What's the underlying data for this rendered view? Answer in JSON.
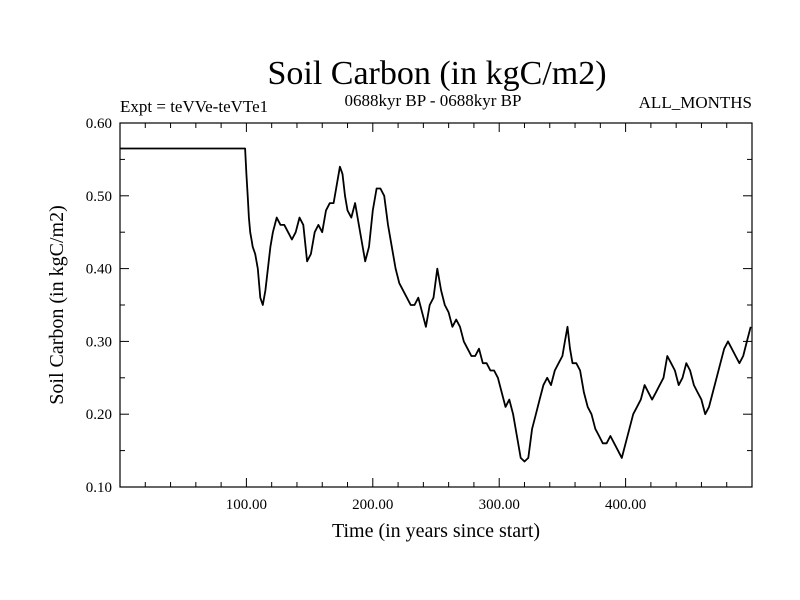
{
  "chart_data": {
    "type": "line",
    "title": "Soil Carbon (in kgC/m2)",
    "subtitle_left": "Expt = teVVe-teVTe1",
    "subtitle_center": "0688kyr BP - 0688kyr BP",
    "subtitle_right": "ALL_MONTHS",
    "xlabel": "Time (in years since start)",
    "ylabel": "Soil Carbon (in kgC/m2)",
    "xlim": [
      0,
      500
    ],
    "ylim": [
      0.1,
      0.6
    ],
    "xticks": [
      100,
      200,
      300,
      400
    ],
    "xtick_labels": [
      "100.00",
      "200.00",
      "300.00",
      "400.00"
    ],
    "yticks": [
      0.1,
      0.2,
      0.3,
      0.4,
      0.5,
      0.6
    ],
    "ytick_labels": [
      "0.10",
      "0.20",
      "0.30",
      "0.40",
      "0.50",
      "0.60"
    ],
    "grid": false,
    "line_color": "#000000",
    "series": [
      {
        "x": [
          0,
          99,
          100,
          101,
          102,
          103,
          104,
          105,
          107,
          109,
          111,
          113,
          115,
          117,
          119,
          121,
          124,
          127,
          130,
          133,
          136,
          139,
          142,
          145,
          148,
          151,
          154,
          157,
          160,
          163,
          166,
          169,
          172,
          174,
          176,
          178,
          180,
          183,
          186,
          188,
          191,
          194,
          197,
          200,
          203,
          206,
          209,
          212,
          215,
          218,
          221,
          224,
          227,
          230,
          233,
          236,
          239,
          242,
          245,
          248,
          251,
          254,
          257,
          260,
          263,
          266,
          269,
          272,
          275,
          278,
          281,
          284,
          287,
          290,
          293,
          296,
          299,
          302,
          305,
          308,
          311,
          314,
          317,
          320,
          323,
          326,
          329,
          332,
          335,
          338,
          341,
          344,
          347,
          350,
          352,
          354,
          356,
          358,
          361,
          364,
          367,
          370,
          373,
          376,
          379,
          382,
          385,
          388,
          391,
          394,
          397,
          400,
          403,
          406,
          409,
          412,
          415,
          418,
          421,
          424,
          427,
          430,
          433,
          436,
          439,
          442,
          445,
          448,
          451,
          454,
          457,
          460,
          463,
          466,
          469,
          472,
          475,
          478,
          481,
          484,
          487,
          490,
          493,
          496,
          499
        ],
        "y": [
          0.565,
          0.565,
          0.53,
          0.5,
          0.47,
          0.45,
          0.44,
          0.43,
          0.42,
          0.4,
          0.36,
          0.35,
          0.37,
          0.4,
          0.43,
          0.45,
          0.47,
          0.46,
          0.46,
          0.45,
          0.44,
          0.45,
          0.47,
          0.46,
          0.41,
          0.42,
          0.45,
          0.46,
          0.45,
          0.48,
          0.49,
          0.49,
          0.52,
          0.54,
          0.53,
          0.5,
          0.48,
          0.47,
          0.49,
          0.47,
          0.44,
          0.41,
          0.43,
          0.48,
          0.51,
          0.51,
          0.5,
          0.46,
          0.43,
          0.4,
          0.38,
          0.37,
          0.36,
          0.35,
          0.35,
          0.36,
          0.34,
          0.32,
          0.35,
          0.36,
          0.4,
          0.37,
          0.35,
          0.34,
          0.32,
          0.33,
          0.32,
          0.3,
          0.29,
          0.28,
          0.28,
          0.29,
          0.27,
          0.27,
          0.26,
          0.26,
          0.25,
          0.23,
          0.21,
          0.22,
          0.2,
          0.17,
          0.14,
          0.135,
          0.14,
          0.18,
          0.2,
          0.22,
          0.24,
          0.25,
          0.24,
          0.26,
          0.27,
          0.28,
          0.3,
          0.32,
          0.29,
          0.27,
          0.27,
          0.26,
          0.23,
          0.21,
          0.2,
          0.18,
          0.17,
          0.16,
          0.16,
          0.17,
          0.16,
          0.15,
          0.14,
          0.16,
          0.18,
          0.2,
          0.21,
          0.22,
          0.24,
          0.23,
          0.22,
          0.23,
          0.24,
          0.25,
          0.28,
          0.27,
          0.26,
          0.24,
          0.25,
          0.27,
          0.26,
          0.24,
          0.23,
          0.22,
          0.2,
          0.21,
          0.23,
          0.25,
          0.27,
          0.29,
          0.3,
          0.29,
          0.28,
          0.27,
          0.28,
          0.3,
          0.32
        ]
      }
    ]
  }
}
